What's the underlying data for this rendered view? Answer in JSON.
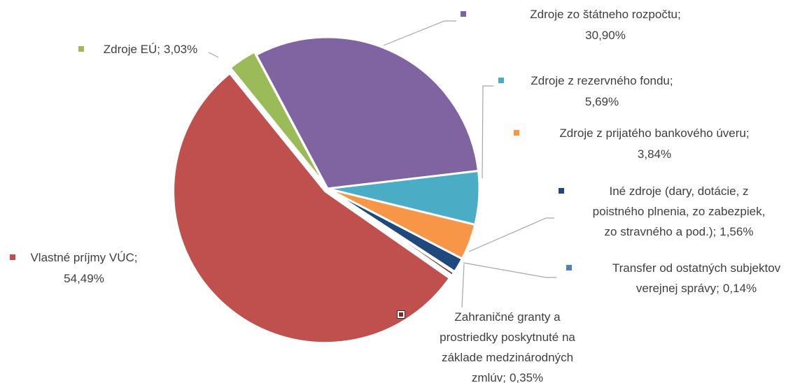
{
  "chart_data": {
    "type": "pie",
    "categories": [
      "Zdroje zo štátneho rozpočtu;",
      "Zdroje z rezervného fondu;",
      "Zdroje z prijatého bankového úveru;",
      "Iné zdroje (dary, dotácie, z\npoistného plnenia, zo zabezpiek,\nzo stravného  a pod.);",
      "Transfer od ostatných subjektov\nverejnej správy;",
      "Zahraničné granty a\nprostriedky poskytnuté na\nzáklade medzinárodných\nzmlúv;",
      "Vlastné príjmy VÚC;",
      "Zdroje EÚ;"
    ],
    "values": [
      30.9,
      5.69,
      3.84,
      1.56,
      0.14,
      0.35,
      54.49,
      3.03
    ],
    "value_labels": [
      "30,90%",
      "5,69%",
      "3,84%",
      "1,56%",
      "0,14%",
      "0,35%",
      "54,49%",
      "3,03%"
    ],
    "colors": [
      "#8064A2",
      "#4BACC6",
      "#F79646",
      "#1F497D",
      "#4F81BD",
      "#772C2A",
      "#C0504D",
      "#9BBB59"
    ]
  }
}
